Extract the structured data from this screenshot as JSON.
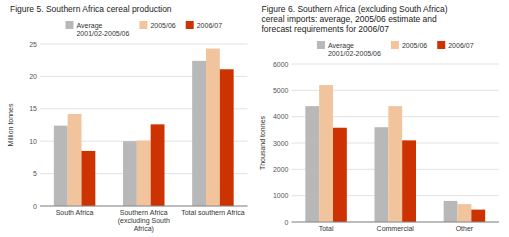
{
  "chart_data": [
    {
      "type": "bar",
      "title": "Figure 5. Southern Africa cereal production",
      "y_label": "Million tonnes",
      "categories": [
        "South Africa",
        "Southern Africa\n(excluding South Africa)",
        "Total southern Africa"
      ],
      "series": [
        {
          "name": "Average\n2001/02-2005/06",
          "color": "#b8b8b8",
          "values": [
            12.4,
            10.0,
            22.4
          ]
        },
        {
          "name": "2005/06",
          "color": "#f2c49e",
          "values": [
            14.2,
            10.1,
            24.3
          ]
        },
        {
          "name": "2006/07",
          "color": "#cc3300",
          "values": [
            8.5,
            12.6,
            21.1
          ]
        }
      ],
      "ylim": [
        0,
        25
      ],
      "yticks": [
        0,
        5,
        10,
        15,
        20,
        25
      ],
      "grid": true,
      "legend": "top"
    },
    {
      "type": "bar",
      "title": "Figure 6. Southern Africa (excluding South Africa)\ncereal imports: average, 2005/06 estimate and\nforecast requirements for 2006/07",
      "y_label": "Thousand tonnes",
      "categories": [
        "Total",
        "Commercial",
        "Other"
      ],
      "series": [
        {
          "name": "Average\n2001/02-2005/06",
          "color": "#b8b8b8",
          "values": [
            4400,
            3600,
            800
          ]
        },
        {
          "name": "2005/06",
          "color": "#f2c49e",
          "values": [
            5200,
            4400,
            680
          ]
        },
        {
          "name": "2006/07",
          "color": "#cc3300",
          "values": [
            3580,
            3100,
            470
          ]
        }
      ],
      "ylim": [
        0,
        6000
      ],
      "yticks": [
        0,
        1000,
        2000,
        3000,
        4000,
        5000,
        6000
      ],
      "grid": true,
      "legend": "top"
    }
  ]
}
